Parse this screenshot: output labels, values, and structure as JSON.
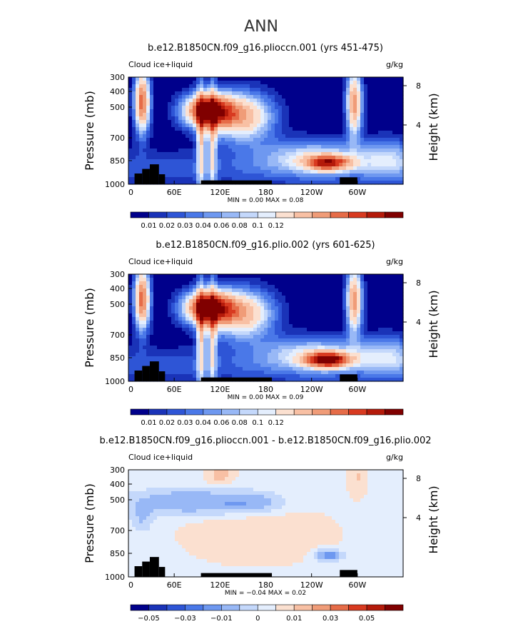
{
  "figure_title": "ANN",
  "chart_data": [
    {
      "type": "heatmap",
      "title": "b.e12.B1850CN.f09_g16.plioccn.001 (yrs 451-475)",
      "left_label": "Cloud ice+liquid",
      "right_label": "g/kg",
      "ylabel": "Pressure (mb)",
      "ylabel_right": "Height (km)",
      "x_ticks": [
        "0",
        "60E",
        "120E",
        "180",
        "120W",
        "60W"
      ],
      "y_ticks": [
        "300",
        "400",
        "500",
        "700",
        "850",
        "1000"
      ],
      "y2_ticks": [
        "8",
        "4"
      ],
      "min_max": "MIN =     0.00   MAX =     0.08",
      "colorbar_ticks": [
        "0.01",
        "0.02",
        "0.03",
        "0.04",
        "0.06",
        "0.08",
        "0.1",
        "0.12"
      ],
      "colorbar_colors": [
        "#00008b",
        "#1a33b8",
        "#2e55d6",
        "#4a78e8",
        "#6e98f0",
        "#98b8f6",
        "#c4d8fb",
        "#e4eefd",
        "#fbe0d0",
        "#f8c0a4",
        "#f09c78",
        "#e66c48",
        "#d83a20",
        "#b41a0a",
        "#800000"
      ],
      "field": "full"
    },
    {
      "type": "heatmap",
      "title": "b.e12.B1850CN.f09_g16.plio.002 (yrs 601-625)",
      "left_label": "Cloud ice+liquid",
      "right_label": "g/kg",
      "ylabel": "Pressure (mb)",
      "ylabel_right": "Height (km)",
      "x_ticks": [
        "0",
        "60E",
        "120E",
        "180",
        "120W",
        "60W"
      ],
      "y_ticks": [
        "300",
        "400",
        "500",
        "700",
        "850",
        "1000"
      ],
      "y2_ticks": [
        "8",
        "4"
      ],
      "min_max": "MIN =     0.00   MAX =     0.09",
      "colorbar_ticks": [
        "0.01",
        "0.02",
        "0.03",
        "0.04",
        "0.06",
        "0.08",
        "0.1",
        "0.12"
      ],
      "colorbar_colors": [
        "#00008b",
        "#1a33b8",
        "#2e55d6",
        "#4a78e8",
        "#6e98f0",
        "#98b8f6",
        "#c4d8fb",
        "#e4eefd",
        "#fbe0d0",
        "#f8c0a4",
        "#f09c78",
        "#e66c48",
        "#d83a20",
        "#b41a0a",
        "#800000"
      ],
      "field": "full"
    },
    {
      "type": "heatmap",
      "title": "b.e12.B1850CN.f09_g16.plioccn.001 - b.e12.B1850CN.f09_g16.plio.002",
      "left_label": "Cloud ice+liquid",
      "right_label": "g/kg",
      "ylabel": "Pressure (mb)",
      "ylabel_right": "Height (km)",
      "x_ticks": [
        "0",
        "60E",
        "120E",
        "180",
        "120W",
        "60W"
      ],
      "y_ticks": [
        "300",
        "400",
        "500",
        "700",
        "850",
        "1000"
      ],
      "y2_ticks": [
        "8",
        "4"
      ],
      "min_max": "MIN =    −0.04   MAX =     0.02",
      "colorbar_ticks": [
        "−0.05",
        "−0.03",
        "−0.01",
        "0",
        "0.01",
        "0.03",
        "0.05"
      ],
      "colorbar_colors": [
        "#00008b",
        "#1a33b8",
        "#2e55d6",
        "#4a78e8",
        "#6e98f0",
        "#98b8f6",
        "#c4d8fb",
        "#e4eefd",
        "#fbe0d0",
        "#f8c0a4",
        "#f09c78",
        "#e66c48",
        "#d83a20",
        "#b41a0a",
        "#800000"
      ],
      "field": "diff"
    }
  ]
}
